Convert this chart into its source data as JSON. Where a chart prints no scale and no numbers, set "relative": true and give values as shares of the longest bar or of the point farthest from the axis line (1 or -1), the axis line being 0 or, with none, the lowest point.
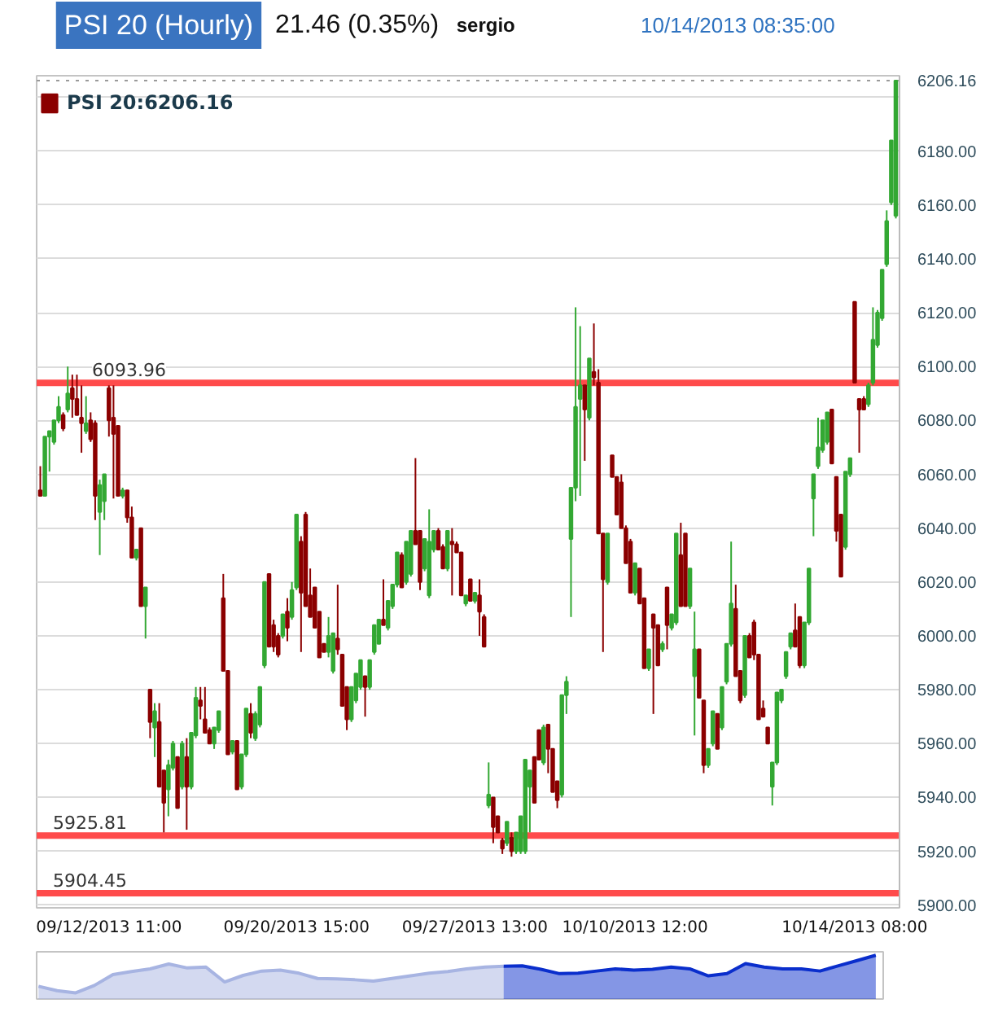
{
  "chart_data": [
    {
      "type": "candlestick",
      "title": "PSI 20 (Hourly)",
      "subtitle": "21.46 (0.35%)",
      "annotations": [
        "sergio",
        "10/14/2013 08:35:00"
      ],
      "categories": [
        null,
        null,
        null,
        null,
        null,
        null,
        null,
        null,
        null,
        null,
        null,
        null,
        null,
        null,
        null,
        "09/12/2013 11:00",
        null,
        null,
        null,
        null,
        null,
        null,
        null,
        null,
        null,
        null,
        null,
        null,
        null,
        null,
        null,
        null,
        null,
        null,
        null,
        null,
        null,
        null,
        null,
        null,
        null,
        null,
        null,
        null,
        null,
        null,
        null,
        null,
        null,
        null,
        null,
        null,
        null,
        null,
        null,
        null,
        "09/20/2013 15:00",
        null,
        null,
        null,
        null,
        null,
        null,
        null,
        null,
        null,
        null,
        null,
        null,
        null,
        null,
        null,
        null,
        null,
        null,
        null,
        null,
        null,
        null,
        null,
        null,
        null,
        null,
        null,
        null,
        null,
        null,
        null,
        null,
        null,
        null,
        null,
        null,
        null,
        null,
        "09/27/2013 13:00",
        null,
        null,
        null,
        null,
        null,
        null,
        null,
        null,
        null,
        null,
        null,
        null,
        null,
        null,
        null,
        null,
        null,
        null,
        null,
        null,
        null,
        null,
        null,
        null,
        null,
        null,
        null,
        null,
        null,
        null,
        null,
        null,
        null,
        null,
        "10/10/2013 12:00",
        null,
        null,
        null,
        null,
        null,
        null,
        null,
        null,
        null,
        null,
        null,
        null,
        null,
        null,
        null,
        null,
        null,
        null,
        null,
        null,
        null,
        null,
        null,
        null,
        null,
        null,
        null,
        null,
        null,
        null,
        null,
        null,
        null,
        null,
        null,
        null,
        null,
        null,
        null,
        null,
        null,
        null,
        null,
        null,
        null,
        null,
        null,
        "10/14/2013 08:00",
        null,
        null,
        null,
        null,
        null,
        null,
        null,
        null,
        null
      ],
      "series": [
        {
          "name": "PSI 20:6206.16",
          "ohlc": [
            [
              6054,
              6063,
              6052,
              6052
            ],
            [
              6052,
              6074,
              6052,
              6074
            ],
            [
              6074,
              6076,
              6061,
              6076
            ],
            [
              6072,
              6080,
              6071,
              6080
            ],
            [
              6080,
              6089,
              6079,
              6085
            ],
            [
              6082,
              6083,
              6076,
              6077
            ],
            [
              6084,
              6100,
              6083,
              6090
            ],
            [
              6092,
              6097,
              6081,
              6088
            ],
            [
              6088,
              6097,
              6082,
              6082
            ],
            [
              6081,
              6093,
              6068,
              6079
            ],
            [
              6076,
              6089,
              6075,
              6079
            ],
            [
              6080,
              6083,
              6072,
              6073
            ],
            [
              6079,
              6080,
              6043,
              6052
            ],
            [
              6046,
              6058,
              6030,
              6056
            ],
            [
              6050,
              6060,
              6043,
              6060
            ],
            [
              6092,
              6093,
              6074,
              6080
            ],
            [
              6081,
              6093,
              6051,
              6075
            ],
            [
              6078,
              6078,
              6052,
              6052
            ],
            [
              6052,
              6055,
              6051,
              6054
            ],
            [
              6054,
              6054,
              6042,
              6044
            ],
            [
              6044,
              6048,
              6029,
              6029
            ],
            [
              6029,
              6032,
              6028,
              6032
            ],
            [
              6040,
              6040,
              6011,
              6011
            ],
            [
              6011,
              6018,
              5999,
              6018
            ],
            [
              5980,
              5980,
              5962,
              5968
            ],
            [
              5966,
              5975,
              5955,
              5972
            ],
            [
              5968,
              5975,
              5944,
              5944
            ],
            [
              5950,
              5950,
              5927,
              5938
            ],
            [
              5943,
              5954,
              5933,
              5952
            ],
            [
              5951,
              5961,
              5950,
              5960
            ],
            [
              5955,
              5955,
              5936,
              5936
            ],
            [
              5944,
              5961,
              5943,
              5960
            ],
            [
              5955,
              5962,
              5928,
              5944
            ],
            [
              5944,
              5964,
              5943,
              5964
            ],
            [
              5963,
              5981,
              5962,
              5977
            ],
            [
              5976,
              5981,
              5969,
              5974
            ],
            [
              5969,
              5981,
              5964,
              5964
            ],
            [
              5965,
              5966,
              5960,
              5960
            ],
            [
              5960,
              5966,
              5958,
              5966
            ],
            [
              5965,
              5972,
              5964,
              5972
            ],
            [
              6014,
              6023,
              5987,
              5987
            ],
            [
              5987,
              5987,
              5956,
              5956
            ],
            [
              5957,
              5961,
              5956,
              5961
            ],
            [
              5961,
              5961,
              5943,
              5943
            ],
            [
              5944,
              5956,
              5943,
              5956
            ],
            [
              5956,
              5973,
              5955,
              5973
            ],
            [
              5971,
              5975,
              5962,
              5964
            ],
            [
              5962,
              5972,
              5961,
              5971
            ],
            [
              5967,
              5981,
              5966,
              5981
            ],
            [
              5989,
              6020,
              5988,
              6020
            ],
            [
              6023,
              6023,
              5996,
              5996
            ],
            [
              6004,
              6006,
              5994,
              5996
            ],
            [
              6000,
              6001,
              5992,
              5993
            ],
            [
              6000,
              6008,
              5999,
              6008
            ],
            [
              6009,
              6014,
              5998,
              6003
            ],
            [
              6007,
              6020,
              6006,
              6017
            ],
            [
              6018,
              6045,
              6017,
              6045
            ],
            [
              6035,
              6037,
              5994,
              6016
            ],
            [
              6045,
              6046,
              6011,
              6011
            ],
            [
              6015,
              6025,
              6007,
              6007
            ],
            [
              6018,
              6018,
              6003,
              6003
            ],
            [
              6009,
              6009,
              5992,
              5992
            ],
            [
              5997,
              5997,
              5994,
              5994
            ],
            [
              5994,
              6007,
              5992,
              6000
            ],
            [
              5987,
              6001,
              5986,
              6001
            ],
            [
              5999,
              6019,
              5993,
              5995
            ],
            [
              5993,
              5993,
              5974,
              5974
            ],
            [
              5981,
              5981,
              5965,
              5969
            ],
            [
              5969,
              5981,
              5968,
              5981
            ],
            [
              5976,
              5986,
              5975,
              5986
            ],
            [
              5981,
              5991,
              5980,
              5991
            ],
            [
              5985,
              5985,
              5970,
              5981
            ],
            [
              5981,
              5991,
              5980,
              5991
            ],
            [
              5994,
              6004,
              5993,
              6004
            ],
            [
              5997,
              6006,
              5997,
              6006
            ],
            [
              6006,
              6021,
              6004,
              6004
            ],
            [
              6003,
              6013,
              6002,
              6013
            ],
            [
              6011,
              6019,
              6010,
              6019
            ],
            [
              6019,
              6031,
              6018,
              6031
            ],
            [
              6030,
              6031,
              6018,
              6018
            ],
            [
              6020,
              6035,
              6019,
              6035
            ],
            [
              6023,
              6039,
              6022,
              6039
            ],
            [
              6039,
              6066,
              6034,
              6034
            ],
            [
              6039,
              6039,
              6017,
              6020
            ],
            [
              6025,
              6036,
              6024,
              6036
            ],
            [
              6015,
              6047,
              6014,
              6035
            ],
            [
              6032,
              6039,
              6031,
              6039
            ],
            [
              6039,
              6040,
              6032,
              6032
            ],
            [
              6033,
              6034,
              6025,
              6025
            ],
            [
              6025,
              6039,
              6024,
              6039
            ],
            [
              6035,
              6040,
              6015,
              6034
            ],
            [
              6034,
              6035,
              6031,
              6031
            ],
            [
              6031,
              6031,
              6015,
              6015
            ],
            [
              6012,
              6015,
              6011,
              6015
            ],
            [
              6021,
              6021,
              6013,
              6013
            ],
            [
              6013,
              6016,
              6012,
              6016
            ],
            [
              6015,
              6021,
              6000,
              6009
            ],
            [
              6007,
              6008,
              5996,
              5996
            ],
            [
              5937,
              5953,
              5936,
              5941
            ],
            [
              5940,
              5940,
              5923,
              5929
            ],
            [
              5933,
              5933,
              5927,
              5927
            ],
            [
              5924,
              5925,
              5919,
              5921
            ],
            [
              5923,
              5931,
              5922,
              5931
            ],
            [
              5925,
              5927,
              5918,
              5920
            ],
            [
              5920,
              5927,
              5919,
              5927
            ],
            [
              5920,
              5933,
              5919,
              5933
            ],
            [
              5920,
              5954,
              5919,
              5954
            ],
            [
              5944,
              5950,
              5927,
              5950
            ],
            [
              5955,
              5955,
              5938,
              5938
            ],
            [
              5965,
              5965,
              5954,
              5954
            ],
            [
              5953,
              5967,
              5952,
              5966
            ],
            [
              5967,
              5967,
              5949,
              5958
            ],
            [
              5958,
              5958,
              5942,
              5942
            ],
            [
              5946,
              5946,
              5936,
              5939
            ],
            [
              5941,
              5978,
              5940,
              5978
            ],
            [
              5978,
              5985,
              5971,
              5983
            ],
            [
              6036,
              6055,
              6007,
              6055
            ],
            [
              6055,
              6122,
              6050,
              6085
            ],
            [
              6088,
              6115,
              6052,
              6093
            ],
            [
              6093,
              6093,
              6065,
              6084
            ],
            [
              6081,
              6103,
              6080,
              6103
            ],
            [
              6098,
              6116,
              6093,
              6096
            ],
            [
              6094,
              6099,
              6038,
              6038
            ],
            [
              6038,
              6038,
              5994,
              6021
            ],
            [
              6020,
              6038,
              6019,
              6038
            ],
            [
              6067,
              6067,
              6059,
              6059
            ],
            [
              6059,
              6059,
              6045,
              6045
            ],
            [
              6057,
              6060,
              6040,
              6040
            ],
            [
              6040,
              6041,
              6027,
              6027
            ],
            [
              6035,
              6036,
              6016,
              6016
            ],
            [
              6016,
              6027,
              6015,
              6027
            ],
            [
              6025,
              6025,
              6012,
              6012
            ],
            [
              6014,
              6014,
              5988,
              5988
            ],
            [
              5988,
              5995,
              5987,
              5995
            ],
            [
              6008,
              6008,
              5971,
              6003
            ],
            [
              6004,
              6004,
              5989,
              5989
            ],
            [
              5995,
              5998,
              5994,
              5997
            ],
            [
              6018,
              6018,
              5995,
              6004
            ],
            [
              6003,
              6008,
              6002,
              6008
            ],
            [
              6005,
              6038,
              6004,
              6038
            ],
            [
              6030,
              6042,
              6011,
              6011
            ],
            [
              6038,
              6038,
              6011,
              6011
            ],
            [
              6011,
              6025,
              6010,
              6025
            ],
            [
              5985,
              6009,
              5963,
              5995
            ],
            [
              5995,
              5995,
              5977,
              5977
            ],
            [
              5976,
              5976,
              5949,
              5952
            ],
            [
              5952,
              5958,
              5951,
              5958
            ],
            [
              5960,
              5972,
              5959,
              5972
            ],
            [
              5971,
              5971,
              5958,
              5958
            ],
            [
              5966,
              5981,
              5965,
              5981
            ],
            [
              5983,
              5997,
              5982,
              5997
            ],
            [
              5997,
              6035,
              5996,
              6012
            ],
            [
              6010,
              6019,
              5985,
              5985
            ],
            [
              5987,
              5987,
              5975,
              5976
            ],
            [
              5978,
              6000,
              5977,
              6000
            ],
            [
              6000,
              6001,
              5992,
              5992
            ],
            [
              6005,
              6006,
              5991,
              5993
            ],
            [
              5993,
              5993,
              5969,
              5969
            ],
            [
              5973,
              5976,
              5970,
              5970
            ],
            [
              5966,
              5966,
              5960,
              5960
            ],
            [
              5944,
              5953,
              5937,
              5953
            ],
            [
              5953,
              5979,
              5952,
              5979
            ],
            [
              5976,
              5980,
              5975,
              5980
            ],
            [
              5985,
              5994,
              5984,
              5994
            ],
            [
              5996,
              6001,
              5995,
              6001
            ],
            [
              6002,
              6012,
              5996,
              5996
            ],
            [
              6007,
              6007,
              5988,
              5989
            ],
            [
              5989,
              6005,
              5988,
              6005
            ],
            [
              6005,
              6025,
              6004,
              6025
            ],
            [
              6051,
              6060,
              6037,
              6060
            ],
            [
              6063,
              6081,
              6062,
              6070
            ],
            [
              6069,
              6080,
              6068,
              6080
            ],
            [
              6072,
              6083,
              6071,
              6083
            ],
            [
              6084,
              6084,
              6064,
              6064
            ],
            [
              6059,
              6059,
              6035,
              6039
            ],
            [
              6045,
              6045,
              6022,
              6022
            ],
            [
              6033,
              6061,
              6032,
              6061
            ],
            [
              6060,
              6066,
              6059,
              6066
            ],
            [
              6124,
              6124,
              6094,
              6094
            ],
            [
              6088,
              6088,
              6068,
              6084
            ],
            [
              6088,
              6089,
              6084,
              6084
            ],
            [
              6086,
              6094,
              6085,
              6093
            ],
            [
              6094,
              6122,
              6093,
              6110
            ],
            [
              6108,
              6121,
              6107,
              6120
            ],
            [
              6118,
              6136,
              6117,
              6136
            ],
            [
              6138,
              6158,
              6137,
              6154
            ],
            [
              6161,
              6184,
              6160,
              6184
            ],
            [
              6156,
              6206.16,
              6155,
              6206.16
            ]
          ],
          "colors": [
            "#8b0000",
            "#33a833",
            "#33a833",
            "#33a833",
            "#33a833",
            "#8b0000",
            "#33a833",
            "#8b0000",
            "#8b0000",
            "#8b0000",
            "#33a833",
            "#8b0000",
            "#8b0000",
            "#33a833",
            "#33a833",
            "#8b0000",
            "#8b0000",
            "#8b0000",
            "#33a833",
            "#8b0000",
            "#8b0000",
            "#33a833",
            "#8b0000",
            "#33a833",
            "#8b0000",
            "#33a833",
            "#8b0000",
            "#8b0000",
            "#33a833",
            "#33a833",
            "#8b0000",
            "#33a833",
            "#8b0000",
            "#33a833",
            "#33a833",
            "#8b0000",
            "#8b0000",
            "#8b0000",
            "#33a833",
            "#33a833",
            "#8b0000",
            "#8b0000",
            "#33a833",
            "#8b0000",
            "#33a833",
            "#33a833",
            "#8b0000",
            "#33a833",
            "#33a833",
            "#33a833",
            "#8b0000",
            "#8b0000",
            "#8b0000",
            "#33a833",
            "#8b0000",
            "#33a833",
            "#33a833",
            "#8b0000",
            "#8b0000",
            "#8b0000",
            "#8b0000",
            "#8b0000",
            "#8b0000",
            "#33a833",
            "#33a833",
            "#8b0000",
            "#8b0000",
            "#8b0000",
            "#33a833",
            "#33a833",
            "#33a833",
            "#8b0000",
            "#33a833",
            "#33a833",
            "#33a833",
            "#8b0000",
            "#33a833",
            "#33a833",
            "#33a833",
            "#8b0000",
            "#33a833",
            "#33a833",
            "#8b0000",
            "#8b0000",
            "#33a833",
            "#33a833",
            "#33a833",
            "#8b0000",
            "#8b0000",
            "#33a833",
            "#8b0000",
            "#8b0000",
            "#8b0000",
            "#33a833",
            "#8b0000",
            "#33a833",
            "#8b0000",
            "#8b0000",
            "#33a833",
            "#8b0000",
            "#8b0000",
            "#8b0000",
            "#33a833",
            "#8b0000",
            "#33a833",
            "#33a833",
            "#33a833",
            "#33a833",
            "#8b0000",
            "#8b0000",
            "#33a833",
            "#8b0000",
            "#8b0000",
            "#8b0000",
            "#33a833",
            "#33a833",
            "#33a833",
            "#33a833",
            "#33a833",
            "#8b0000",
            "#33a833",
            "#8b0000",
            "#8b0000",
            "#8b0000",
            "#33a833",
            "#8b0000",
            "#8b0000",
            "#8b0000",
            "#8b0000",
            "#8b0000",
            "#33a833",
            "#8b0000",
            "#8b0000",
            "#33a833",
            "#8b0000",
            "#8b0000",
            "#33a833",
            "#8b0000",
            "#33a833",
            "#33a833",
            "#8b0000",
            "#8b0000",
            "#33a833",
            "#33a833",
            "#8b0000",
            "#8b0000",
            "#33a833",
            "#33a833",
            "#8b0000",
            "#33a833",
            "#33a833",
            "#33a833",
            "#8b0000",
            "#8b0000",
            "#33a833",
            "#8b0000",
            "#8b0000",
            "#8b0000",
            "#8b0000",
            "#8b0000",
            "#33a833",
            "#33a833",
            "#33a833",
            "#33a833",
            "#33a833",
            "#8b0000",
            "#8b0000",
            "#33a833",
            "#33a833",
            "#33a833",
            "#33a833",
            "#33a833",
            "#33a833",
            "#8b0000",
            "#8b0000",
            "#8b0000",
            "#33a833",
            "#33a833",
            "#8b0000",
            "#8b0000",
            "#8b0000",
            "#33a833",
            "#33a833",
            "#33a833",
            "#33a833",
            "#33a833",
            "#33a833",
            "#33a833"
          ]
        }
      ],
      "ylim": [
        5899,
        6208
      ],
      "yticks": [
        {
          "value": 5900,
          "label": "5900.00"
        },
        {
          "value": 5920,
          "label": "5920.00"
        },
        {
          "value": 5940,
          "label": "5940.00"
        },
        {
          "value": 5960,
          "label": "5960.00"
        },
        {
          "value": 5980,
          "label": "5980.00"
        },
        {
          "value": 6000,
          "label": "6000.00"
        },
        {
          "value": 6020,
          "label": "6020.00"
        },
        {
          "value": 6040,
          "label": "6040.00"
        },
        {
          "value": 6060,
          "label": "6060.00"
        },
        {
          "value": 6080,
          "label": "6080.00"
        },
        {
          "value": 6100,
          "label": "6100.00"
        },
        {
          "value": 6120,
          "label": "6120.00"
        },
        {
          "value": 6140,
          "label": "6140.00"
        },
        {
          "value": 6160,
          "label": "6160.00"
        },
        {
          "value": 6180,
          "label": "6180.00"
        },
        {
          "value": 6200,
          "label": null
        }
      ],
      "ref_lines": [
        {
          "axis": "y",
          "value": 6093.96,
          "label": "6093.96",
          "color": "#ff4b4b"
        },
        {
          "axis": "y",
          "value": 5925.81,
          "label": "5925.81",
          "color": "#ff4b4b"
        },
        {
          "axis": "y",
          "value": 5904.45,
          "label": "5904.45",
          "color": "#ff4b4b"
        },
        {
          "axis": "y",
          "value": 6206.16,
          "label": "6206.16",
          "color": "#9a9a9a",
          "line_style": "dotted"
        }
      ],
      "grid": "y",
      "legend": "top left"
    },
    {
      "type": "area",
      "relative": true,
      "categories": [
        null,
        null,
        null,
        null,
        null,
        null,
        null,
        null,
        null,
        null,
        null,
        null,
        null,
        null,
        null,
        null,
        null,
        null,
        null,
        null,
        null,
        null,
        null,
        null,
        null,
        null,
        null,
        null,
        null,
        null,
        null,
        null,
        null,
        null,
        null,
        null,
        null,
        null,
        null,
        null,
        null,
        null,
        null,
        null,
        null,
        null
      ],
      "series": [
        {
          "color": "#a7b4e2",
          "values": [
            0.29,
            0.19,
            0.14,
            0.31,
            0.56,
            0.63,
            0.69,
            0.8,
            0.71,
            0.73,
            0.39,
            0.54,
            0.64,
            0.66,
            0.59,
            0.47,
            0.46,
            0.44,
            0.41,
            0.47,
            0.53,
            0.59,
            0.63,
            0.69,
            0.73,
            0.75,
            null,
            null,
            null,
            null,
            null,
            null,
            null,
            null,
            null,
            null,
            null,
            null,
            null,
            null,
            null,
            null,
            null,
            null,
            null,
            null
          ]
        },
        {
          "color": "#0a2ecc",
          "values": [
            null,
            null,
            null,
            null,
            null,
            null,
            null,
            null,
            null,
            null,
            null,
            null,
            null,
            null,
            null,
            null,
            null,
            null,
            null,
            null,
            null,
            null,
            null,
            null,
            null,
            0.75,
            0.76,
            0.68,
            0.58,
            0.59,
            0.64,
            0.69,
            0.66,
            0.68,
            0.73,
            0.69,
            0.53,
            0.58,
            0.81,
            0.73,
            0.69,
            0.69,
            0.64,
            0.76,
            0.88,
            1.0
          ]
        }
      ]
    }
  ]
}
